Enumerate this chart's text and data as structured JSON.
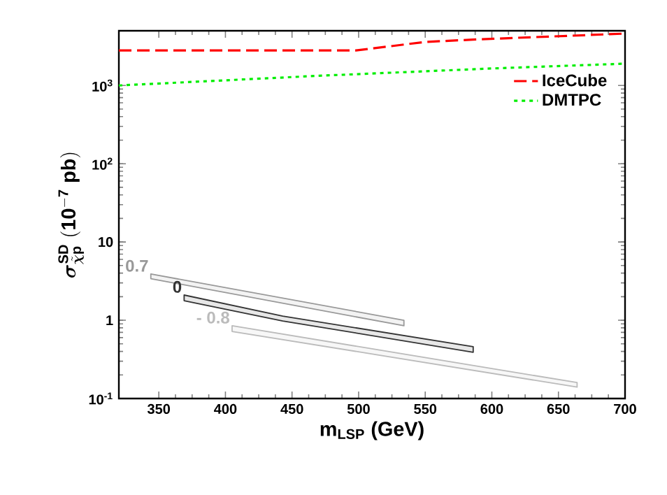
{
  "chart_data": {
    "type": "line",
    "xlabel": "m$_{LSP}$ (GeV)",
    "ylabel": "\\boldsymbol{\\sigma}^{\\mathbf{SD}}_{\\tilde{\\boldsymbol{\\chi}}\\mathbf{p}}\\ \\mathbf{(10^{-7}\\ pb)}",
    "log": "y",
    "xlim": [
      320,
      700
    ],
    "ylim": [
      0.1,
      5000
    ],
    "xticks": [
      350,
      400,
      450,
      500,
      550,
      600,
      650,
      700
    ],
    "yticks": [
      {
        "value": 0.1,
        "label": "10$^{-1}$"
      },
      1,
      10,
      {
        "value": 100,
        "label": "10$^{2}$"
      },
      {
        "value": 1000,
        "label": "10$^{3}$"
      }
    ],
    "grid": false,
    "legend": "top right",
    "series": [
      {
        "name": "IceCube",
        "color": "#ff0000",
        "line_style": "dashed",
        "x": [
          320,
          498,
          550,
          592,
          700
        ],
        "values": [
          2800,
          2800,
          3600,
          3900,
          4600
        ]
      },
      {
        "name": "DMTPC",
        "color": "#00ee00",
        "line_style": "dotted",
        "x": [
          320,
          470,
          600,
          700
        ],
        "values": [
          1000,
          1330,
          1650,
          1900
        ]
      },
      {
        "name": "0.7",
        "color": "#999999",
        "x": [
          344,
          534
        ],
        "values": [
          null,
          null
        ],
        "lower": [
          3.4,
          0.85
        ],
        "upper": [
          3.9,
          1.0
        ]
      },
      {
        "name": "0",
        "color": "#333333",
        "x": [
          369,
          443,
          586
        ],
        "values": [
          null,
          null,
          null
        ],
        "lower": [
          1.78,
          0.98,
          0.39
        ],
        "upper": [
          2.1,
          1.13,
          0.46
        ]
      },
      {
        "name": "- 0.8",
        "color": "#bbbbbb",
        "x": [
          405,
          664
        ],
        "values": [
          null,
          null
        ],
        "lower": [
          0.72,
          0.14
        ],
        "upper": [
          0.85,
          0.16
        ]
      }
    ]
  }
}
